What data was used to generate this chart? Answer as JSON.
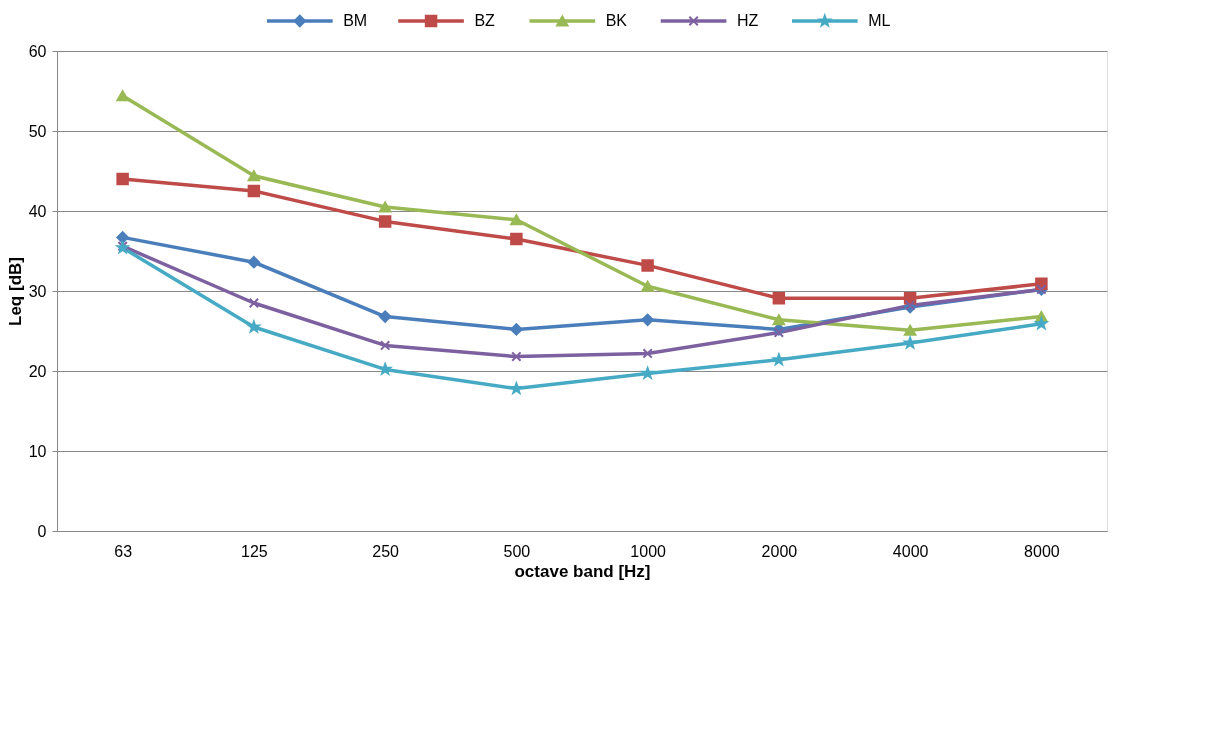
{
  "chart_data": {
    "type": "line",
    "xlabel": "octave band [Hz]",
    "ylabel": "Leq [dB]",
    "categories": [
      "63",
      "125",
      "250",
      "500",
      "1000",
      "2000",
      "4000",
      "8000"
    ],
    "ylim": [
      0,
      60
    ],
    "yticks": [
      0,
      10,
      20,
      30,
      40,
      50,
      60
    ],
    "grid": "y",
    "legend": "top",
    "line_style": "solid",
    "series": [
      {
        "name": "BM",
        "color": "#4a7ebb",
        "marker": "diamond",
        "values": [
          36.7,
          33.6,
          26.8,
          25.2,
          26.4,
          25.2,
          28.0,
          30.2
        ]
      },
      {
        "name": "BZ",
        "color": "#be4b48",
        "marker": "square",
        "values": [
          44.0,
          42.5,
          38.7,
          36.5,
          33.2,
          29.1,
          29.1,
          30.9
        ]
      },
      {
        "name": "BK",
        "color": "#98b954",
        "marker": "triangle",
        "values": [
          54.4,
          44.4,
          40.5,
          38.9,
          30.6,
          26.4,
          25.1,
          26.8
        ]
      },
      {
        "name": "HZ",
        "color": "#7d60a0",
        "marker": "cross",
        "values": [
          35.6,
          28.5,
          23.2,
          21.8,
          22.2,
          24.8,
          28.2,
          30.2
        ]
      },
      {
        "name": "ML",
        "color": "#46aac5",
        "marker": "star",
        "values": [
          35.4,
          25.5,
          20.2,
          17.8,
          19.7,
          21.4,
          23.5,
          25.9
        ]
      }
    ]
  }
}
